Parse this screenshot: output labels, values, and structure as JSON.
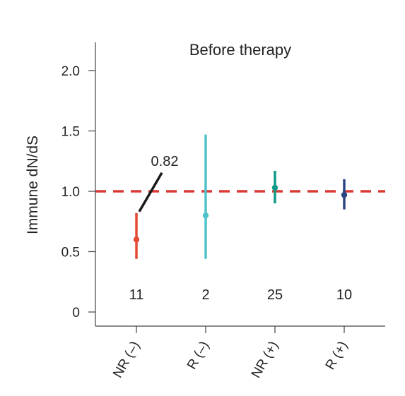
{
  "chart_data": {
    "type": "errorbar",
    "title": "Before therapy",
    "xlabel": "",
    "ylabel": "Immune dN/dS",
    "ylim": [
      0,
      2.0
    ],
    "yticks": [
      0,
      0.5,
      1.0,
      1.5,
      2.0
    ],
    "ytick_labels": [
      "0",
      "0.5",
      "1.0",
      "1.5",
      "2.0"
    ],
    "grid": false,
    "reference_line": {
      "y": 1.0,
      "color": "#d93a35",
      "style": "dashed"
    },
    "categories": [
      "NR (–)",
      "R (–)",
      "NR (+)",
      "R (+)"
    ],
    "points": [
      {
        "category": "NR (–)",
        "value": 0.6,
        "lower": 0.44,
        "upper": 0.82,
        "n": "11",
        "color": "#e24a33"
      },
      {
        "category": "R (–)",
        "value": 0.8,
        "lower": 0.44,
        "upper": 1.47,
        "n": "2",
        "color": "#4ec3cc"
      },
      {
        "category": "NR (+)",
        "value": 1.03,
        "lower": 0.9,
        "upper": 1.17,
        "n": "25",
        "color": "#0e9a87"
      },
      {
        "category": "R (+)",
        "value": 0.97,
        "lower": 0.85,
        "upper": 1.1,
        "n": "10",
        "color": "#2b4584"
      }
    ],
    "annotations": [
      {
        "text": "0.82",
        "target_category": "NR (–)",
        "target_value": 0.82
      }
    ]
  }
}
